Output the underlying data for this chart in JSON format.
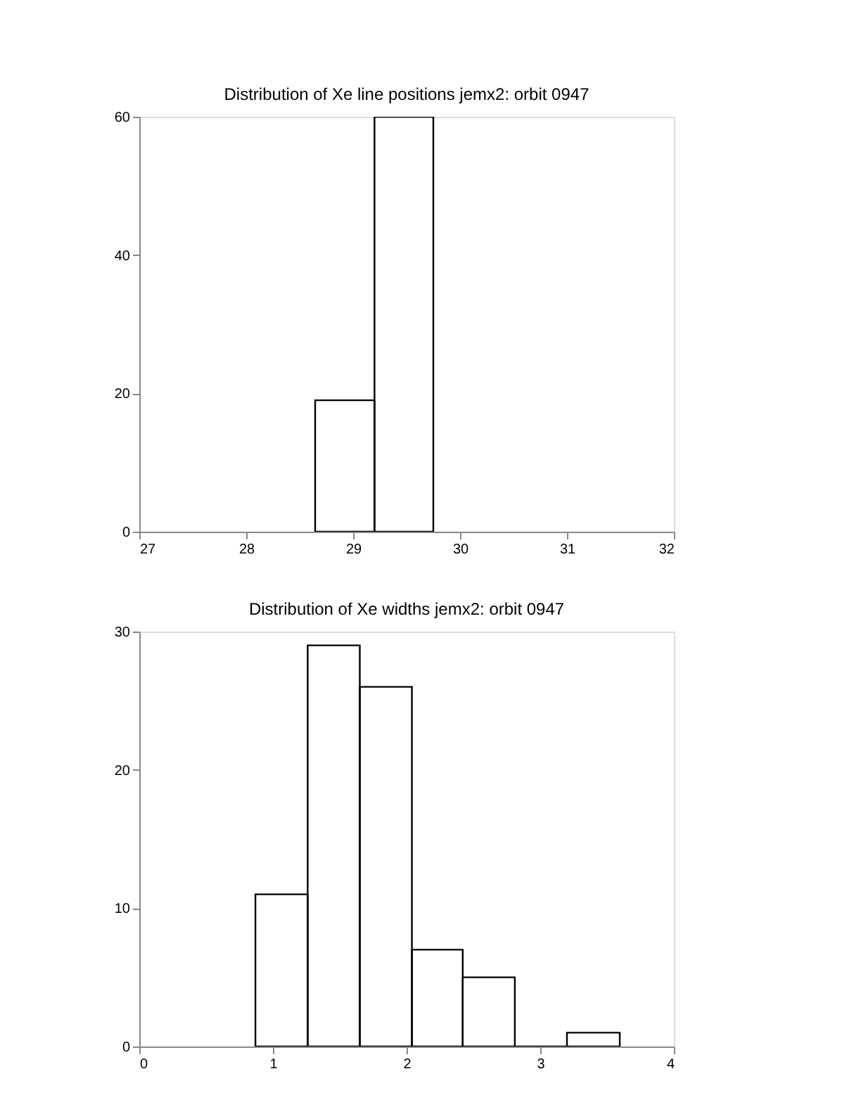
{
  "chart_data": [
    {
      "type": "histogram",
      "title": "Distribution of Xe line positions jemx2: orbit 0947",
      "bins": [
        28.645,
        29.2,
        29.75
      ],
      "values": [
        19,
        60
      ],
      "color": "#000000",
      "xlim": [
        27,
        32
      ],
      "xticks": [
        27,
        28,
        29,
        30,
        31,
        32
      ],
      "ylim": [
        0,
        60
      ],
      "yticks": [
        0,
        20,
        40,
        60
      ],
      "grid": false
    },
    {
      "type": "histogram",
      "title": "Distribution of Xe widths jemx2: orbit 0947",
      "bins": [
        0.869,
        1.26,
        1.65,
        2.04,
        2.42,
        2.81,
        3.2,
        3.595
      ],
      "values": [
        11,
        29,
        26,
        7,
        5,
        0,
        1
      ],
      "color": "#000000",
      "xlim": [
        0,
        4
      ],
      "xticks": [
        0,
        1,
        2,
        3,
        4
      ],
      "ylim": [
        0,
        30
      ],
      "yticks": [
        0,
        10,
        20,
        30
      ],
      "grid": false
    }
  ]
}
